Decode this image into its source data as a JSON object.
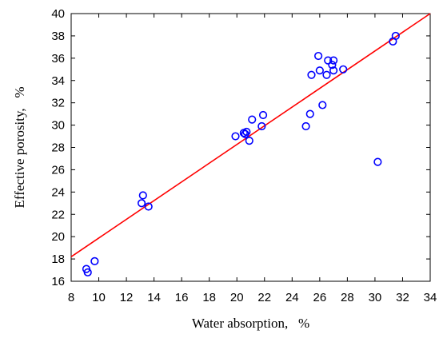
{
  "chart_data": {
    "type": "scatter",
    "title": "",
    "xlabel": "Water absorption,   %",
    "ylabel": "Effective porosity,   %",
    "xlim": [
      8,
      34
    ],
    "ylim": [
      16,
      40
    ],
    "xticks": [
      8,
      10,
      12,
      14,
      16,
      18,
      20,
      22,
      24,
      26,
      28,
      30,
      32,
      34
    ],
    "yticks": [
      16,
      18,
      20,
      22,
      24,
      26,
      28,
      30,
      32,
      34,
      36,
      38,
      40
    ],
    "grid": false,
    "marker_color": "#0000ff",
    "line_color": "#ff0000",
    "points": [
      {
        "x": 9.1,
        "y": 17.1
      },
      {
        "x": 9.2,
        "y": 16.8
      },
      {
        "x": 9.7,
        "y": 17.8
      },
      {
        "x": 13.1,
        "y": 23.0
      },
      {
        "x": 13.2,
        "y": 23.7
      },
      {
        "x": 13.6,
        "y": 22.7
      },
      {
        "x": 19.9,
        "y": 29.0
      },
      {
        "x": 20.5,
        "y": 29.3
      },
      {
        "x": 20.7,
        "y": 29.4
      },
      {
        "x": 20.6,
        "y": 29.2
      },
      {
        "x": 20.9,
        "y": 28.6
      },
      {
        "x": 21.1,
        "y": 30.5
      },
      {
        "x": 21.8,
        "y": 29.9
      },
      {
        "x": 21.9,
        "y": 30.9
      },
      {
        "x": 25.0,
        "y": 29.9
      },
      {
        "x": 25.3,
        "y": 31.0
      },
      {
        "x": 25.4,
        "y": 34.5
      },
      {
        "x": 25.9,
        "y": 36.2
      },
      {
        "x": 26.0,
        "y": 34.9
      },
      {
        "x": 26.2,
        "y": 31.8
      },
      {
        "x": 26.5,
        "y": 34.5
      },
      {
        "x": 26.6,
        "y": 35.8
      },
      {
        "x": 26.9,
        "y": 35.4
      },
      {
        "x": 27.0,
        "y": 35.8
      },
      {
        "x": 27.0,
        "y": 34.9
      },
      {
        "x": 27.7,
        "y": 35.0
      },
      {
        "x": 30.2,
        "y": 26.7
      },
      {
        "x": 31.3,
        "y": 37.5
      },
      {
        "x": 31.5,
        "y": 38.0
      }
    ],
    "fit_line": {
      "x": [
        8,
        34
      ],
      "y": [
        18.2,
        40.0
      ]
    }
  }
}
